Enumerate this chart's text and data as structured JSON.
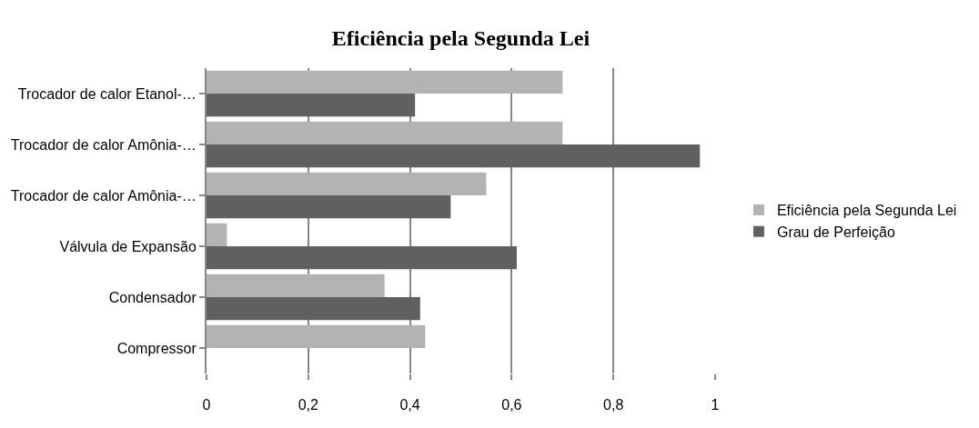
{
  "chart_data": {
    "type": "bar",
    "orientation": "horizontal",
    "title": "Eficiência pela Segunda Lei",
    "categories": [
      "Trocador de calor Etanol-…",
      "Trocador de calor Amônia-…",
      "Trocador de calor Amônia-…",
      "Válvula de Expansão",
      "Condensador",
      "Compressor"
    ],
    "series": [
      {
        "name": "Eficiência pela Segunda Lei",
        "color": "#b3b3b3",
        "values": [
          0.7,
          0.7,
          0.55,
          0.04,
          0.35,
          0.43
        ]
      },
      {
        "name": "Grau de Perfeição",
        "color": "#606060",
        "values": [
          0.41,
          0.97,
          0.48,
          0.61,
          0.42,
          0
        ]
      }
    ],
    "xlim": [
      0,
      1
    ],
    "xticks": [
      0,
      {
        "value": 0.2,
        "label": "0,2"
      },
      {
        "value": 0.4,
        "label": "0,4"
      },
      {
        "value": 0.6,
        "label": "0,6"
      },
      {
        "value": 0.8,
        "label": "0,8"
      },
      1
    ],
    "grid": "x",
    "legend": "right"
  }
}
